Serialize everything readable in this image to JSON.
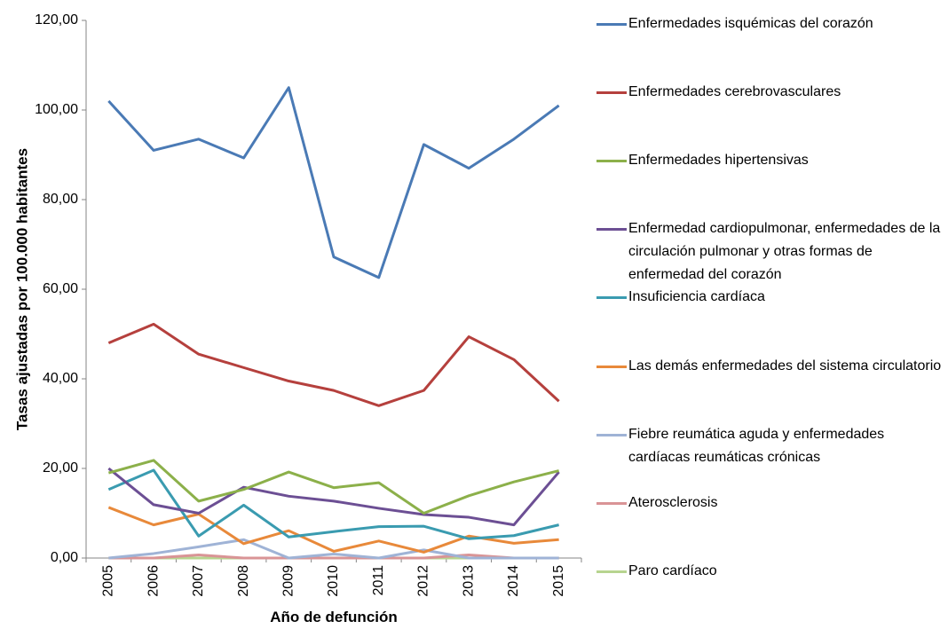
{
  "chart_data": {
    "type": "line",
    "y_label": "Tasas ajustadas por 100.000 habitantes",
    "x_label": "Año de defunción",
    "categories": [
      "2005",
      "2006",
      "2007",
      "2008",
      "2009",
      "2010",
      "2011",
      "2012",
      "2013",
      "2014",
      "2015"
    ],
    "ylim": [
      0,
      120
    ],
    "yticks": [
      {
        "value": 0,
        "label": "0,00"
      },
      {
        "value": 20,
        "label": "20,00"
      },
      {
        "value": 40,
        "label": "40,00"
      },
      {
        "value": 60,
        "label": "60,00"
      },
      {
        "value": 80,
        "label": "80,00"
      },
      {
        "value": 100,
        "label": "100,00"
      },
      {
        "value": 120,
        "label": "120,00"
      }
    ],
    "series": [
      {
        "name": "Enfermedades isquémicas del corazón",
        "color": "#4a7ab5",
        "values": [
          102,
          91,
          93.5,
          89.3,
          105,
          67.2,
          62.6,
          92.3,
          87,
          93.5,
          101
        ]
      },
      {
        "name": "Enfermedades cerebrovasculares",
        "color": "#b5403d",
        "values": [
          48,
          52.2,
          45.5,
          42.5,
          39.5,
          37.4,
          34,
          37.4,
          49.4,
          44.3,
          35
        ]
      },
      {
        "name": "Enfermedades hipertensivas",
        "color": "#8cb04a",
        "values": [
          19,
          21.8,
          12.7,
          15.3,
          19.2,
          15.7,
          16.8,
          10,
          13.9,
          17,
          19.5
        ]
      },
      {
        "name": "Enfermedad cardiopulmonar, enfermedades de la circulación pulmonar y otras formas de enfermedad del corazón",
        "color": "#6c4f94",
        "values": [
          20,
          11.9,
          10,
          15.8,
          13.8,
          12.7,
          11.1,
          9.7,
          9.1,
          7.4,
          19.2
        ]
      },
      {
        "name": "Insuficiencia cardíaca",
        "color": "#3a9bb0",
        "values": [
          15.3,
          19.6,
          4.9,
          11.8,
          4.7,
          5.9,
          7,
          7.1,
          4.3,
          5,
          7.4
        ]
      },
      {
        "name": "Las demás enfermedades del sistema circulatorio",
        "color": "#e8893a",
        "values": [
          11.3,
          7.4,
          9.8,
          3.2,
          6.1,
          1.5,
          3.8,
          1.3,
          4.9,
          3.3,
          4.1
        ]
      },
      {
        "name": "Fiebre reumática aguda y enfermedades cardíacas reumáticas crónicas",
        "color": "#9fb3d6",
        "values": [
          0,
          1,
          2.5,
          4.1,
          0,
          0.9,
          0,
          1.8,
          0,
          0,
          0
        ]
      },
      {
        "name": "Aterosclerosis",
        "color": "#d99496",
        "values": [
          0,
          0,
          0.7,
          0,
          0,
          0,
          0,
          0,
          0.7,
          0,
          0
        ]
      },
      {
        "name": "Paro cardíaco",
        "color": "#b7d48f",
        "values": [
          0,
          0,
          0,
          0,
          0,
          0,
          0,
          0,
          0,
          0,
          0
        ]
      }
    ]
  }
}
